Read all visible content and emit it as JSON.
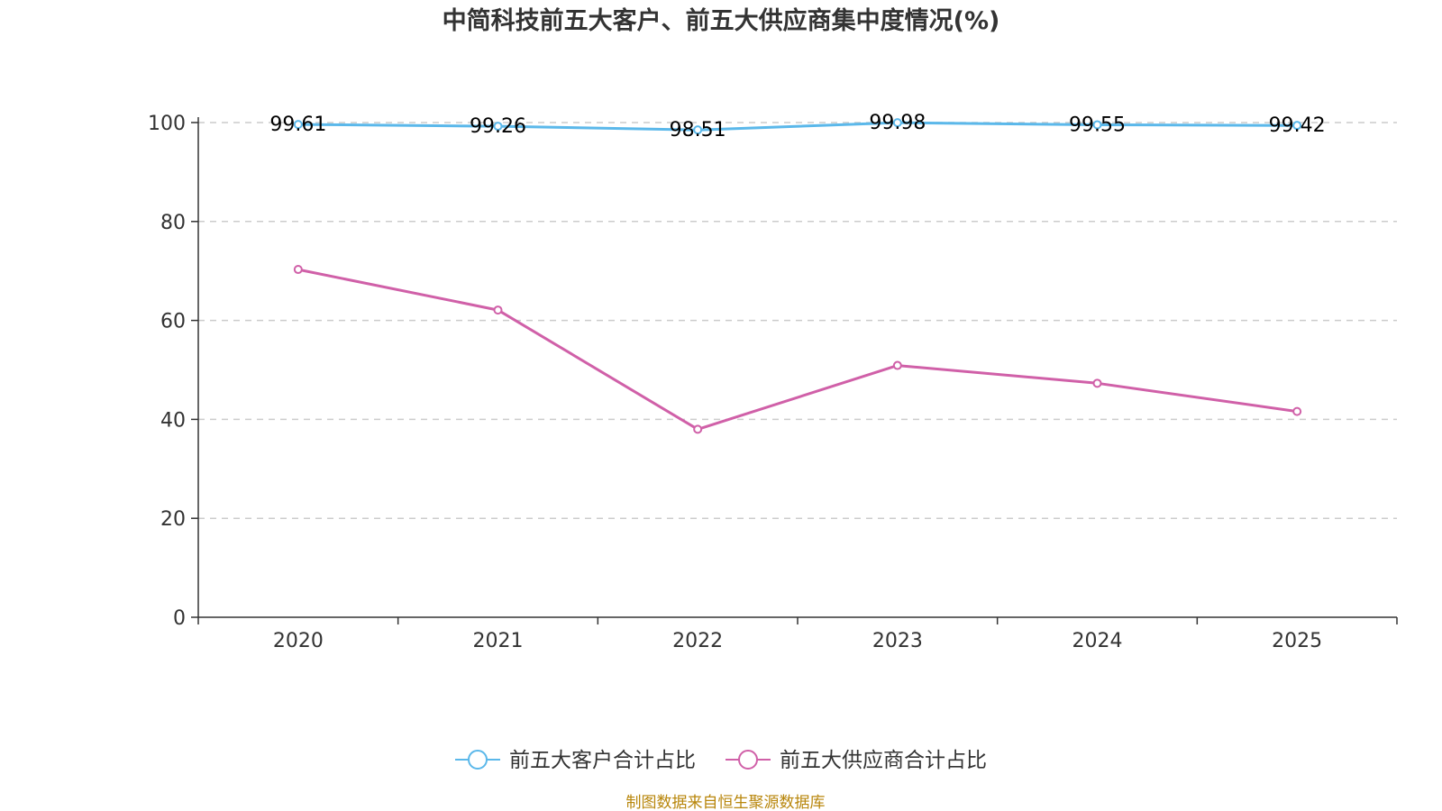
{
  "chart_data": {
    "type": "line",
    "title": "中简科技前五大客户、前五大供应商集中度情况(%)",
    "categories": [
      "2020",
      "2021",
      "2022",
      "2023",
      "2024",
      "2025"
    ],
    "ylim": [
      0,
      100
    ],
    "yticks": [
      0,
      20,
      40,
      60,
      80,
      100
    ],
    "grid": true,
    "legend_position": "bottom",
    "series": [
      {
        "name": "前五大客户合计占比",
        "color": "#5bb8ea",
        "values": [
          99.61,
          99.26,
          98.51,
          99.98,
          99.55,
          99.42
        ],
        "labels": [
          "99.61",
          "99.26",
          "98.51",
          "99.98",
          "99.55",
          "99.42"
        ]
      },
      {
        "name": "前五大供应商合计占比",
        "color": "#d060a8",
        "values": [
          70.3,
          62.1,
          38.0,
          50.9,
          47.3,
          41.6
        ]
      }
    ],
    "source": "制图数据来自恒生聚源数据库"
  }
}
